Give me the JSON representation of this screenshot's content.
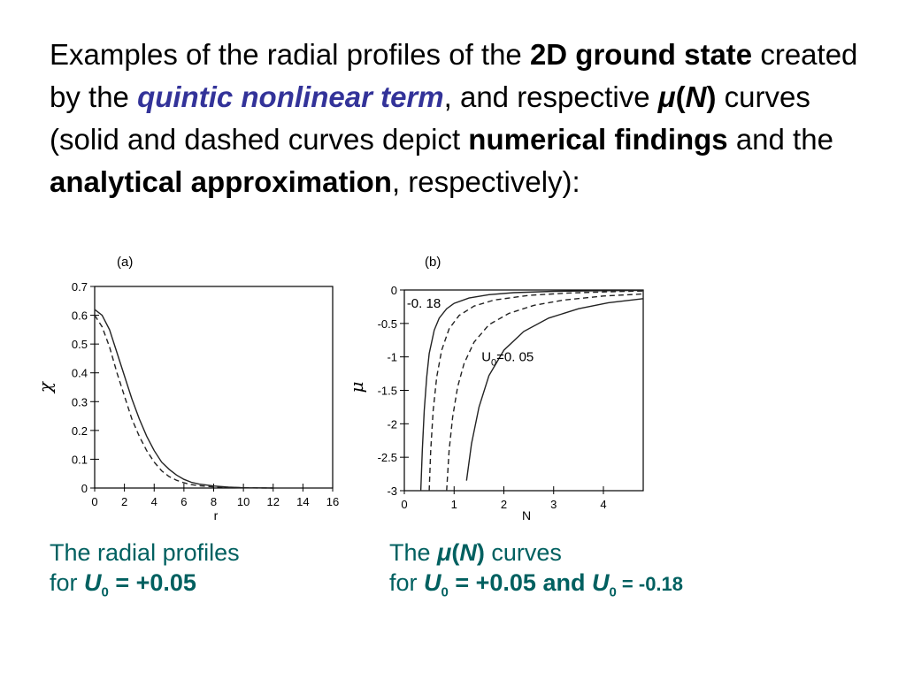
{
  "heading": {
    "t1": "Examples of the radial profiles of the ",
    "t2": "2D ground state",
    "t3": " created by the ",
    "t4": "quintic nonlinear term",
    "t5": ", and respective ",
    "t6_mu": "μ",
    "t6_open": "(",
    "t6_N": "N",
    "t6_close": ")",
    "t7": " curves (solid and dashed curves depict ",
    "t8": "numerical findings",
    "t9": " and the ",
    "t10": "analytical approximation",
    "t11": ", respectively):"
  },
  "caption_a": {
    "line1": "The radial profiles",
    "line2_pre": " for ",
    "U": "U",
    "sub": "0",
    "line2_post": " = +0.05"
  },
  "caption_b": {
    "line1_pre": "The ",
    "mu": "μ",
    "open": "(",
    "N": "N",
    "close": ")",
    "line1_post": " curves",
    "line2_pre": "for ",
    "U1": "U",
    "sub1": "0",
    "mid": " = +0.05 and ",
    "U2": "U",
    "sub2": "0",
    "post": " = -0.18"
  },
  "chart_data": [
    {
      "type": "line",
      "panel_label": "(a)",
      "xlabel": "r",
      "ylabel": "χ",
      "xlim": [
        0,
        16
      ],
      "ylim": [
        0,
        0.7
      ],
      "xticks": [
        0,
        2,
        4,
        6,
        8,
        10,
        12,
        14,
        16
      ],
      "yticks": [
        0,
        0.1,
        0.2,
        0.3,
        0.4,
        0.5,
        0.6,
        0.7
      ],
      "series": [
        {
          "style": "solid",
          "x": [
            0,
            0.5,
            1,
            1.5,
            2,
            2.5,
            3,
            3.5,
            4,
            4.5,
            5,
            5.5,
            6,
            6.5,
            7,
            8,
            9,
            10,
            11,
            12
          ],
          "values": [
            0.62,
            0.6,
            0.55,
            0.47,
            0.39,
            0.31,
            0.24,
            0.18,
            0.13,
            0.09,
            0.065,
            0.045,
            0.03,
            0.02,
            0.014,
            0.007,
            0.003,
            0.001,
            0.0005,
            0
          ]
        },
        {
          "style": "dashed",
          "x": [
            0,
            0.5,
            1,
            1.5,
            2,
            2.5,
            3,
            3.5,
            4,
            4.5,
            5,
            5.5,
            6,
            6.5,
            7,
            8,
            9,
            10,
            11,
            12
          ],
          "values": [
            0.6,
            0.56,
            0.49,
            0.4,
            0.32,
            0.24,
            0.18,
            0.13,
            0.09,
            0.06,
            0.04,
            0.027,
            0.018,
            0.012,
            0.008,
            0.004,
            0.002,
            0.001,
            0.0003,
            0
          ]
        }
      ]
    },
    {
      "type": "line",
      "panel_label": "(b)",
      "xlabel": "N",
      "ylabel": "μ",
      "xlim": [
        0,
        4.8
      ],
      "ylim": [
        -3,
        0
      ],
      "xticks": [
        0,
        1,
        2,
        3,
        4
      ],
      "yticks": [
        0,
        -0.5,
        -1,
        -1.5,
        -2,
        -2.5,
        -3
      ],
      "annotations": [
        {
          "text": "-0. 18",
          "x": 0.05,
          "y": -0.2
        },
        {
          "text": "U",
          "sub": "0",
          "rest": "=0. 05",
          "x": 1.55,
          "y": -1.0
        }
      ],
      "series": [
        {
          "style": "solid",
          "x": [
            0.33,
            0.36,
            0.4,
            0.45,
            0.5,
            0.6,
            0.7,
            0.85,
            1.0,
            1.3,
            1.7,
            2.2,
            3.0,
            4.0,
            4.8
          ],
          "values": [
            -3.0,
            -2.4,
            -1.8,
            -1.3,
            -0.95,
            -0.6,
            -0.42,
            -0.28,
            -0.2,
            -0.12,
            -0.07,
            -0.04,
            -0.02,
            -0.01,
            -0.005
          ]
        },
        {
          "style": "dashed",
          "x": [
            0.5,
            0.53,
            0.58,
            0.65,
            0.75,
            0.9,
            1.1,
            1.4,
            1.8,
            2.5,
            3.3,
            4.2,
            4.8
          ],
          "values": [
            -3.0,
            -2.4,
            -1.8,
            -1.3,
            -0.9,
            -0.58,
            -0.38,
            -0.24,
            -0.15,
            -0.08,
            -0.045,
            -0.025,
            -0.015
          ]
        },
        {
          "style": "dashed",
          "x": [
            0.85,
            0.9,
            0.97,
            1.07,
            1.2,
            1.4,
            1.7,
            2.1,
            2.6,
            3.2,
            4.0,
            4.8
          ],
          "values": [
            -3.0,
            -2.4,
            -1.9,
            -1.45,
            -1.1,
            -0.78,
            -0.52,
            -0.35,
            -0.23,
            -0.15,
            -0.09,
            -0.06
          ]
        },
        {
          "style": "solid",
          "x": [
            1.25,
            1.35,
            1.5,
            1.7,
            2.0,
            2.4,
            2.9,
            3.5,
            4.1,
            4.8
          ],
          "values": [
            -2.85,
            -2.3,
            -1.75,
            -1.28,
            -0.9,
            -0.62,
            -0.42,
            -0.28,
            -0.19,
            -0.13
          ]
        }
      ]
    }
  ]
}
